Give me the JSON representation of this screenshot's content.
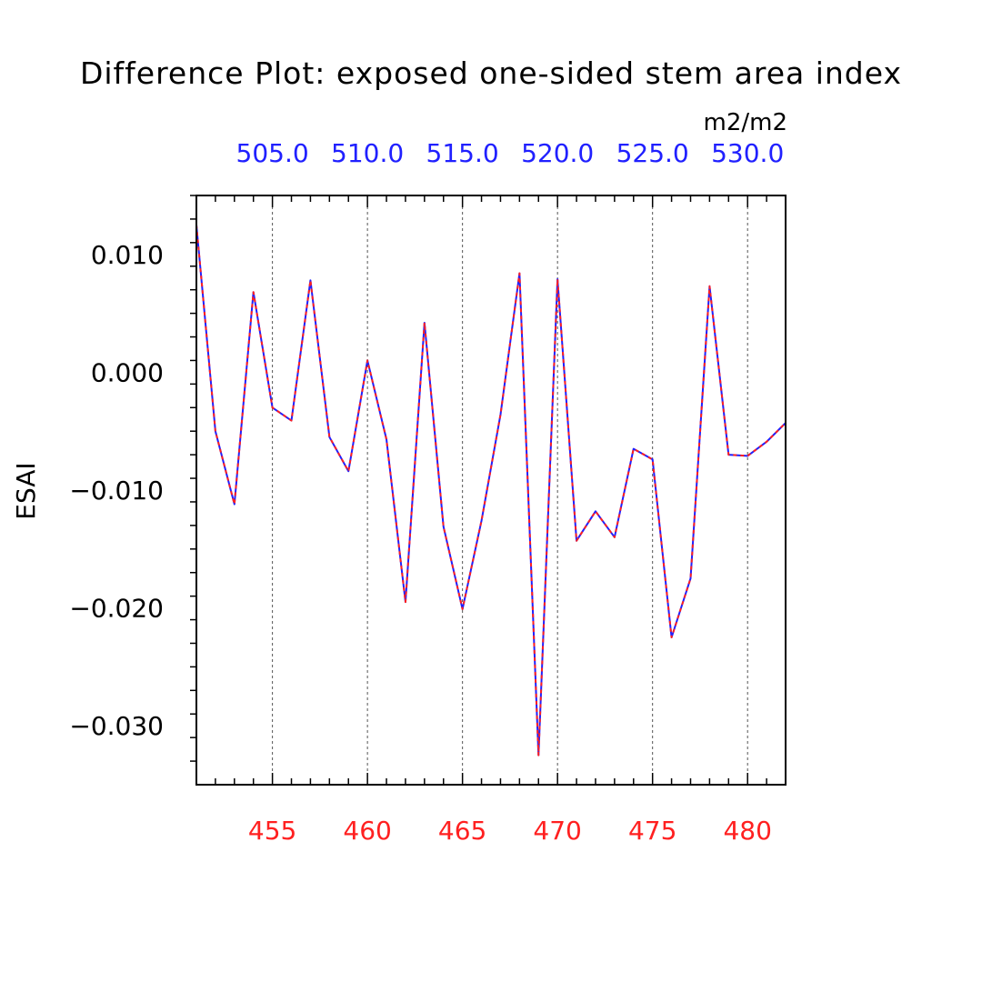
{
  "chart_data": {
    "type": "line",
    "title": "Difference Plot: exposed one-sided stem area index",
    "units": "m2/m2",
    "ylabel": "ESAI",
    "xlabel": "",
    "xlim": [
      451,
      482
    ],
    "ylim": [
      -0.035,
      0.015
    ],
    "grid": "vertical-dashed",
    "bottom_axis": {
      "ticks": [
        455,
        460,
        465,
        470,
        475,
        480
      ],
      "labels": [
        "455",
        "460",
        "465",
        "470",
        "475",
        "480"
      ],
      "color": "#ff2020"
    },
    "top_axis": {
      "ticks": [
        455,
        460,
        465,
        470,
        475,
        480
      ],
      "labels": [
        "505.0",
        "510.0",
        "515.0",
        "520.0",
        "525.0",
        "530.0"
      ],
      "color": "#2020ff"
    },
    "left_axis": {
      "ticks": [
        0.01,
        0.0,
        -0.01,
        -0.02,
        -0.03
      ],
      "labels": [
        "0.010",
        "0.000",
        "−0.010",
        "−0.020",
        "−0.030"
      ]
    },
    "x": [
      451,
      452,
      453,
      454,
      455,
      456,
      457,
      458,
      459,
      460,
      461,
      462,
      463,
      464,
      465,
      466,
      467,
      468,
      469,
      470,
      471,
      472,
      473,
      474,
      475,
      476,
      477,
      478,
      479,
      480,
      481,
      482
    ],
    "series": [
      {
        "values": [
          0.0125,
          -0.005,
          -0.0112,
          0.0068,
          -0.003,
          -0.0041,
          0.0078,
          -0.0055,
          -0.0084,
          0.001,
          -0.0057,
          -0.0195,
          0.0042,
          -0.0131,
          -0.0201,
          -0.0126,
          -0.0036,
          0.0084,
          -0.0325,
          0.0079,
          -0.0143,
          -0.0118,
          -0.014,
          -0.0065,
          -0.0074,
          -0.0225,
          -0.0175,
          0.0073,
          -0.007,
          -0.0071,
          -0.0059,
          -0.0043
        ],
        "color": "#2020ff",
        "style": "solid"
      },
      {
        "values": [
          0.0125,
          -0.005,
          -0.0112,
          0.0068,
          -0.003,
          -0.0041,
          0.0078,
          -0.0055,
          -0.0084,
          0.001,
          -0.0057,
          -0.0195,
          0.0042,
          -0.0131,
          -0.0201,
          -0.0126,
          -0.0036,
          0.0084,
          -0.0325,
          0.0079,
          -0.0143,
          -0.0118,
          -0.014,
          -0.0065,
          -0.0074,
          -0.0225,
          -0.0175,
          0.0073,
          -0.007,
          -0.0071,
          -0.0059,
          -0.0043
        ],
        "color": "#ff2020",
        "style": "dashed"
      }
    ]
  }
}
